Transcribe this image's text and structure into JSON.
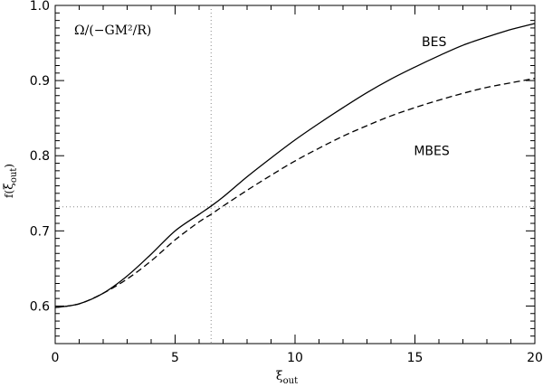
{
  "chart_data": {
    "type": "line",
    "annotation": "Ω/(−GM²/R)",
    "xlabel": "ξ",
    "xlabel_sub": "out",
    "ylabel_prefix": "f(",
    "ylabel_symbol": "ξ",
    "ylabel_sub": "out",
    "ylabel_suffix": ")",
    "xlim": [
      0,
      20
    ],
    "ylim": [
      0.55,
      1.0
    ],
    "xticks": [
      0,
      5,
      10,
      15,
      20
    ],
    "xtick_labels": [
      "0",
      "5",
      "10",
      "15",
      "20"
    ],
    "yticks": [
      0.6,
      0.7,
      0.8,
      0.9,
      1.0
    ],
    "ytick_labels": [
      "0.6",
      "0.7",
      "0.8",
      "0.9",
      "1.0"
    ],
    "reference_lines": {
      "x": 6.5,
      "y": 0.732
    },
    "series": [
      {
        "name": "BES",
        "style": "solid",
        "x": [
          0,
          1,
          2,
          3,
          4,
          5,
          6,
          6.5,
          7,
          8,
          9,
          10,
          11,
          12,
          13,
          14,
          15,
          16,
          17,
          18,
          19,
          20
        ],
        "y": [
          0.598,
          0.603,
          0.617,
          0.64,
          0.669,
          0.7,
          0.722,
          0.733,
          0.745,
          0.772,
          0.797,
          0.821,
          0.843,
          0.864,
          0.884,
          0.902,
          0.918,
          0.933,
          0.947,
          0.958,
          0.968,
          0.976
        ]
      },
      {
        "name": "MBES",
        "style": "dashed",
        "x": [
          0,
          1,
          2,
          3,
          4,
          5,
          6,
          6.5,
          7,
          8,
          9,
          10,
          11,
          12,
          13,
          14,
          15,
          16,
          17,
          18,
          19,
          20
        ],
        "y": [
          0.598,
          0.603,
          0.617,
          0.636,
          0.66,
          0.688,
          0.712,
          0.722,
          0.733,
          0.754,
          0.774,
          0.793,
          0.81,
          0.826,
          0.84,
          0.853,
          0.864,
          0.874,
          0.883,
          0.891,
          0.897,
          0.903
        ]
      }
    ],
    "curve_labels": [
      {
        "text": "BES",
        "x": 15.8,
        "y": 0.946
      },
      {
        "text": "MBES",
        "x": 15.7,
        "y": 0.801
      }
    ]
  }
}
